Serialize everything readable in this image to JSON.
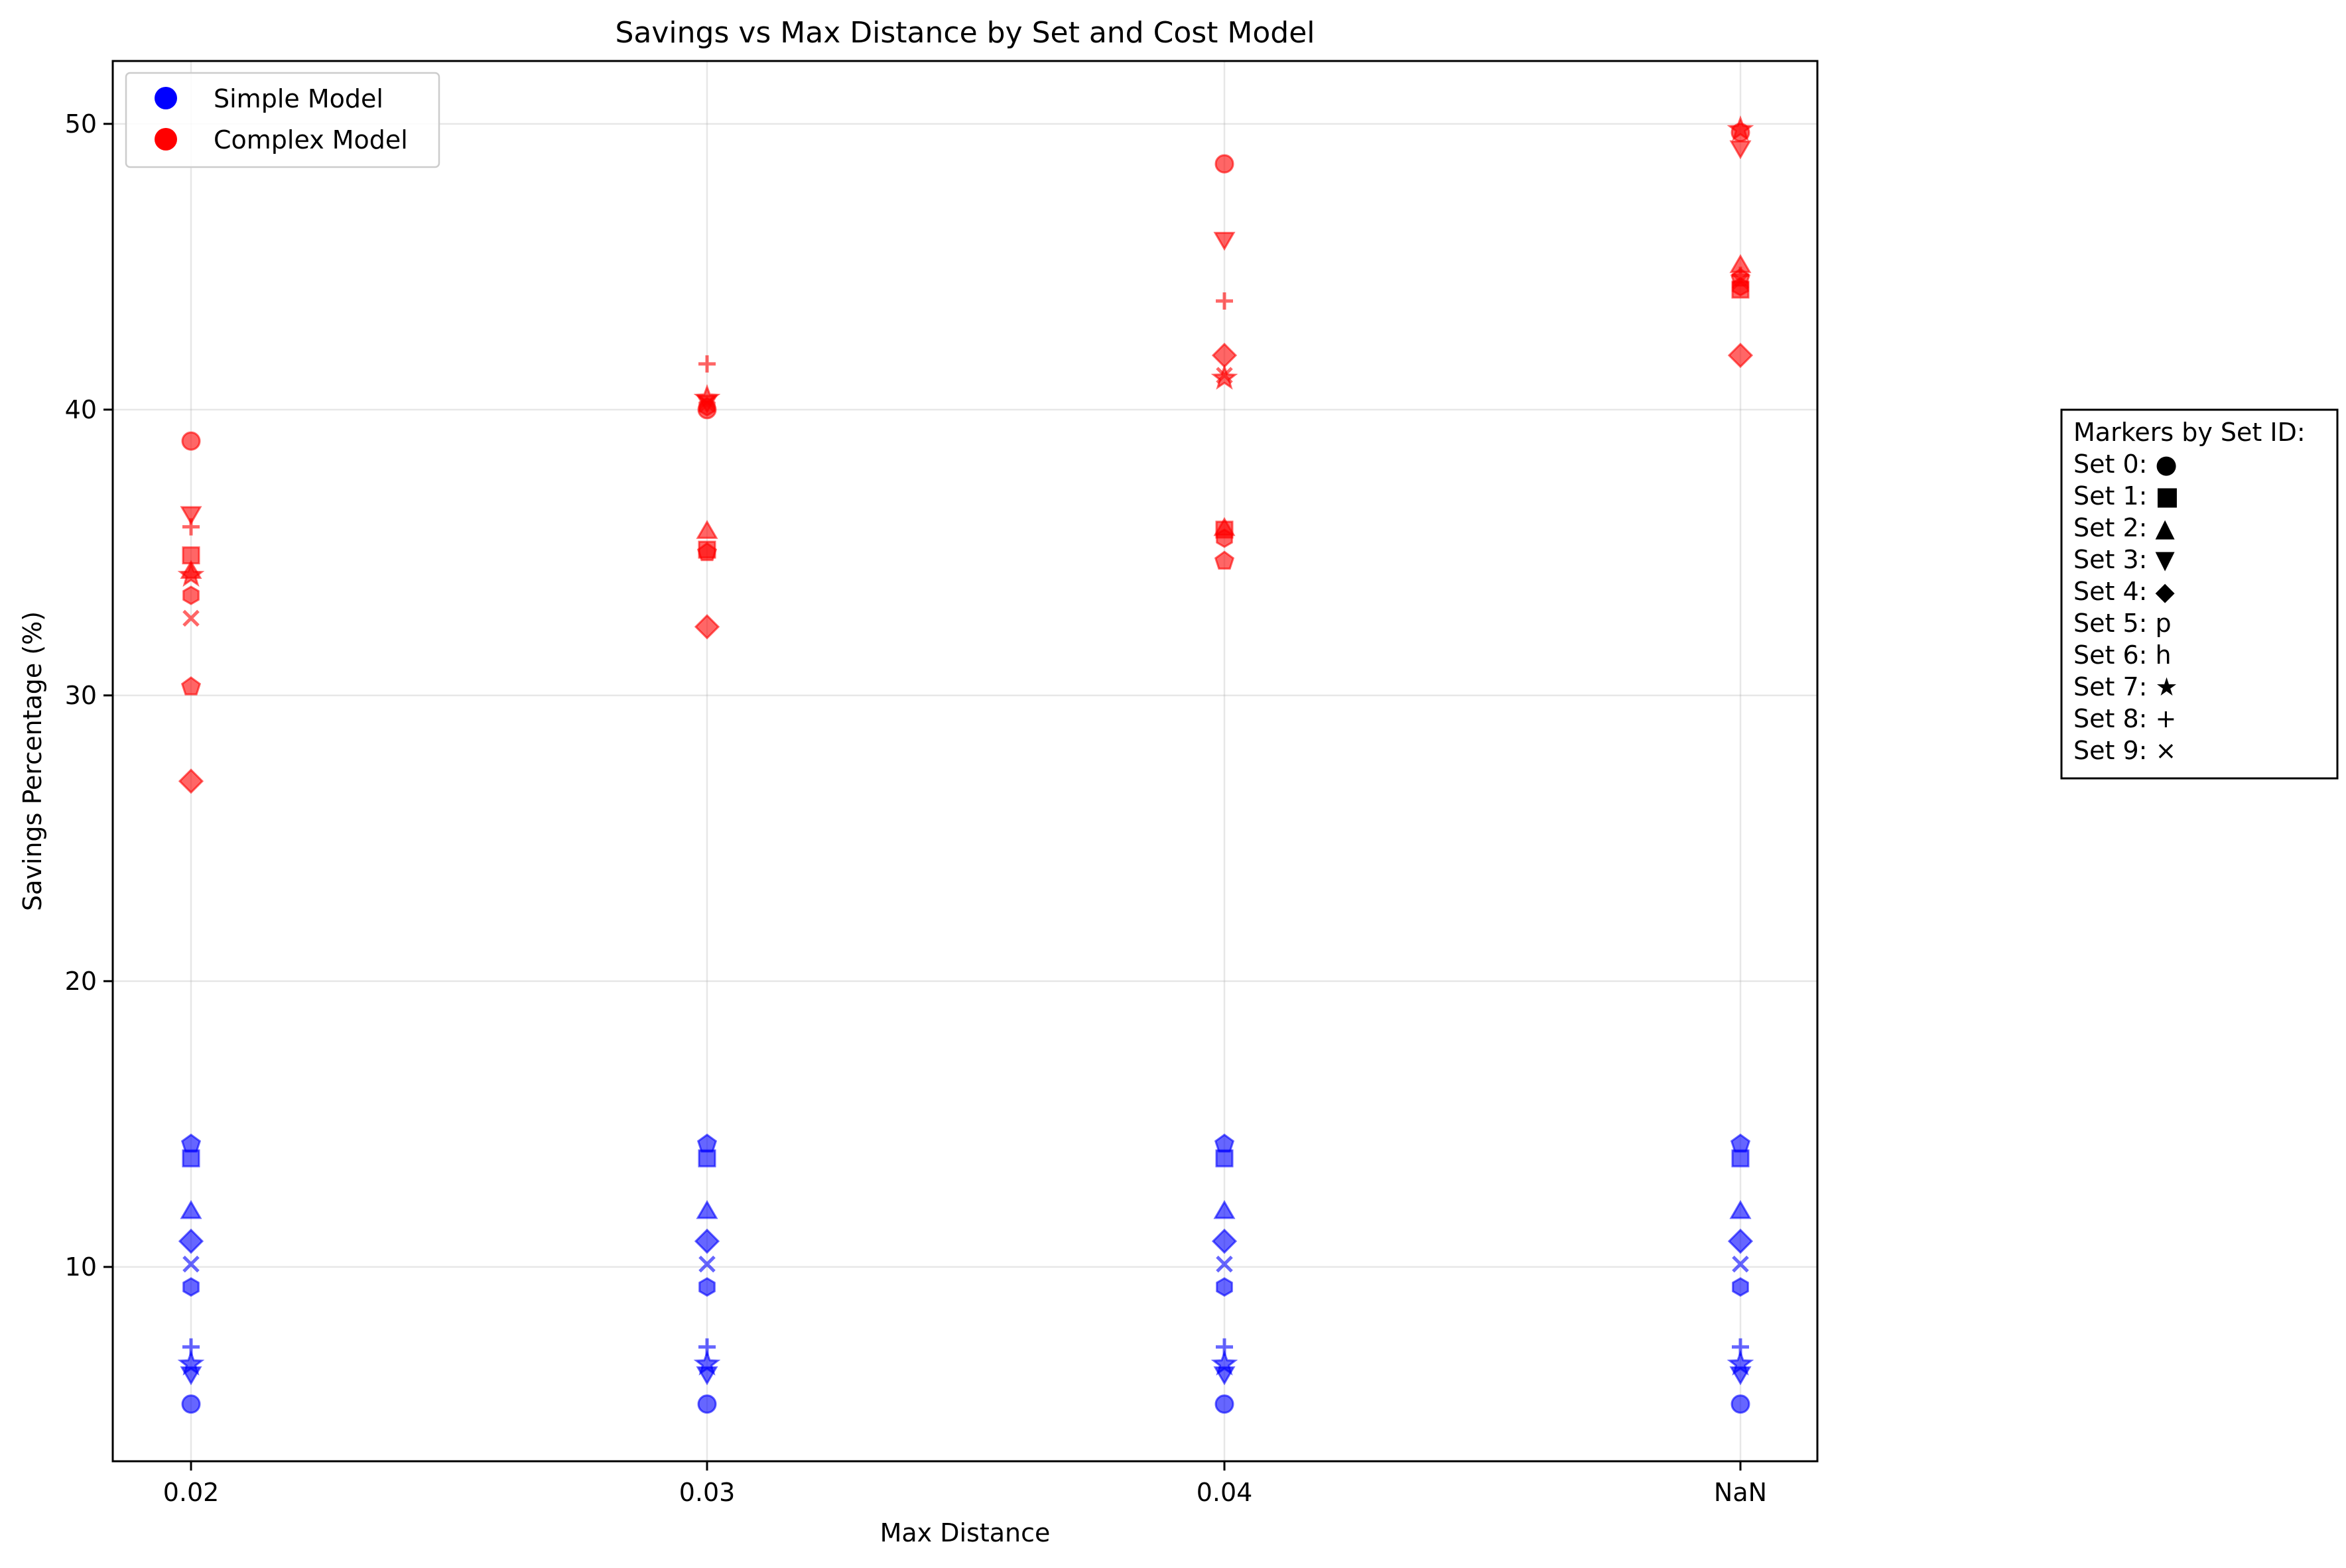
{
  "chart_data": {
    "type": "scatter",
    "title": "Savings vs Max Distance by Set and Cost Model",
    "xlabel": "Max Distance",
    "ylabel": "Savings Percentage (%)",
    "x_categories": [
      "0.02",
      "0.03",
      "0.04",
      "NaN"
    ],
    "ylim": [
      3.2,
      52.2
    ],
    "yticks": [
      10,
      20,
      30,
      40,
      50
    ],
    "grid": true,
    "legend": {
      "placement": "top-left",
      "entries": [
        {
          "label": "Simple Model",
          "color": "#0000ff"
        },
        {
          "label": "Complex Model",
          "color": "#ff0000"
        }
      ]
    },
    "marker_key": {
      "placement": "right",
      "title": "Markers by Set ID:",
      "entries": [
        "Set 0: ●",
        "Set 1: ■",
        "Set 2: ▲",
        "Set 3: ▼",
        "Set 4: ◆",
        "Set 5: p",
        "Set 6: h",
        "Set 7: ★",
        "Set 8: +",
        "Set 9: ×"
      ]
    },
    "colors": {
      "simple": "#0000ff",
      "complex": "#ff0000"
    },
    "series": [
      {
        "name": "Simple Model",
        "color": "#0000ff",
        "points": [
          {
            "set": 0,
            "values": [
              5.2,
              5.2,
              5.2,
              5.2
            ]
          },
          {
            "set": 1,
            "values": [
              13.8,
              13.8,
              13.8,
              13.8
            ]
          },
          {
            "set": 2,
            "values": [
              11.9,
              11.9,
              11.9,
              11.9
            ]
          },
          {
            "set": 3,
            "values": [
              6.3,
              6.3,
              6.3,
              6.3
            ]
          },
          {
            "set": 4,
            "values": [
              10.9,
              10.9,
              10.9,
              10.9
            ]
          },
          {
            "set": 5,
            "values": [
              14.3,
              14.3,
              14.3,
              14.3
            ]
          },
          {
            "set": 6,
            "values": [
              9.3,
              9.3,
              9.3,
              9.3
            ]
          },
          {
            "set": 7,
            "values": [
              6.6,
              6.6,
              6.6,
              6.6
            ]
          },
          {
            "set": 8,
            "values": [
              7.2,
              7.2,
              7.2,
              7.2
            ]
          },
          {
            "set": 9,
            "values": [
              10.1,
              10.1,
              10.1,
              10.1
            ]
          }
        ]
      },
      {
        "name": "Complex Model",
        "color": "#ff0000",
        "points": [
          {
            "set": 0,
            "values": [
              38.9,
              40.0,
              48.6,
              49.7
            ]
          },
          {
            "set": 1,
            "values": [
              34.9,
              35.1,
              35.8,
              44.2
            ]
          },
          {
            "set": 2,
            "values": [
              34.3,
              35.7,
              35.8,
              45.0
            ]
          },
          {
            "set": 3,
            "values": [
              36.4,
              40.3,
              46.0,
              49.2
            ]
          },
          {
            "set": 4,
            "values": [
              27.0,
              32.4,
              41.9,
              41.9
            ]
          },
          {
            "set": 5,
            "values": [
              30.3,
              35.0,
              34.7,
              44.6
            ]
          },
          {
            "set": 6,
            "values": [
              33.5,
              40.1,
              35.5,
              44.3
            ]
          },
          {
            "set": 7,
            "values": [
              34.2,
              40.4,
              41.1,
              49.8
            ]
          },
          {
            "set": 8,
            "values": [
              35.9,
              41.6,
              43.8,
              44.7
            ]
          },
          {
            "set": 9,
            "values": [
              32.7,
              40.2,
              41.2,
              44.5
            ]
          }
        ]
      }
    ]
  }
}
